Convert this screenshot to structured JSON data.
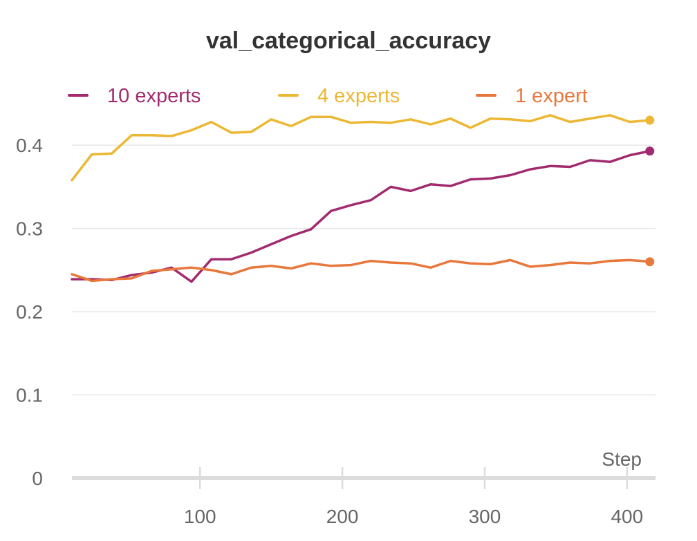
{
  "chart_data": {
    "type": "line",
    "title": "val_categorical_accuracy",
    "xlabel": "Step",
    "ylabel": "",
    "xlim": [
      10,
      420
    ],
    "ylim": [
      0,
      0.44
    ],
    "xticks": [
      100,
      200,
      300,
      400
    ],
    "xtick_labels": [
      "100",
      "200",
      "300",
      "400"
    ],
    "yticks": [
      0,
      0.1,
      0.2,
      0.3,
      0.4
    ],
    "ytick_labels": [
      "0",
      "0.1",
      "0.2",
      "0.3",
      "0.4"
    ],
    "grid": true,
    "legend": "top",
    "x": [
      10,
      24,
      38,
      52,
      66,
      80,
      94,
      108,
      122,
      136,
      150,
      164,
      178,
      192,
      206,
      220,
      234,
      248,
      262,
      276,
      290,
      304,
      318,
      332,
      346,
      360,
      374,
      388,
      402,
      416
    ],
    "series": [
      {
        "name": "10 experts",
        "color": "#a12b6e",
        "values": [
          0.239,
          0.239,
          0.238,
          0.244,
          0.247,
          0.253,
          0.236,
          0.263,
          0.263,
          0.271,
          0.281,
          0.291,
          0.299,
          0.321,
          0.328,
          0.334,
          0.35,
          0.345,
          0.353,
          0.351,
          0.359,
          0.36,
          0.364,
          0.371,
          0.375,
          0.374,
          0.382,
          0.38,
          0.388,
          0.393
        ]
      },
      {
        "name": "4 experts",
        "color": "#ecb733",
        "values": [
          0.358,
          0.389,
          0.39,
          0.412,
          0.412,
          0.411,
          0.418,
          0.428,
          0.415,
          0.416,
          0.431,
          0.423,
          0.434,
          0.434,
          0.427,
          0.428,
          0.427,
          0.431,
          0.425,
          0.432,
          0.421,
          0.432,
          0.431,
          0.429,
          0.436,
          0.428,
          0.432,
          0.436,
          0.428,
          0.43
        ]
      },
      {
        "name": "1 expert",
        "color": "#e8773b",
        "values": [
          0.245,
          0.237,
          0.239,
          0.24,
          0.249,
          0.251,
          0.253,
          0.25,
          0.245,
          0.253,
          0.255,
          0.252,
          0.258,
          0.255,
          0.256,
          0.261,
          0.259,
          0.258,
          0.253,
          0.261,
          0.258,
          0.257,
          0.262,
          0.254,
          0.256,
          0.259,
          0.258,
          0.261,
          0.262,
          0.26
        ]
      }
    ]
  }
}
